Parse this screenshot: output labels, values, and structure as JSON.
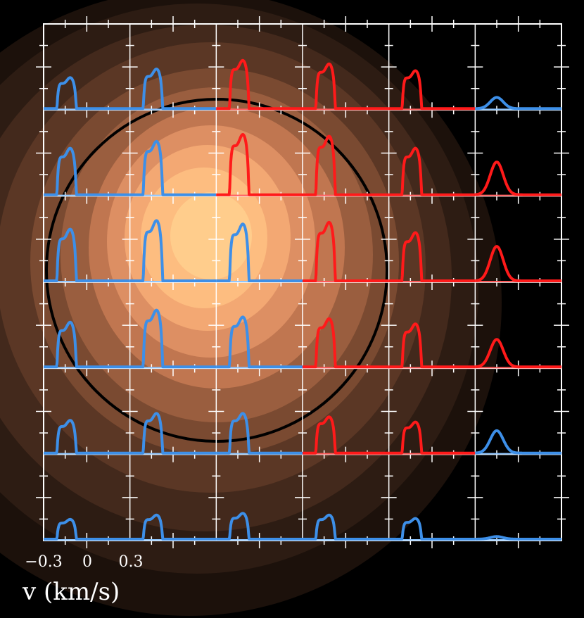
{
  "colors": {
    "background": "#000000",
    "grid": "#ffffff",
    "blue_spectrum": "#3d8fe8",
    "red_spectrum": "#ff1a1a",
    "blue_baseline": "#8ec6ff",
    "red_baseline": "#ff5a5a",
    "ring": "#000000",
    "contour_levels": [
      "#1c110b",
      "#2d1c13",
      "#43291c",
      "#5b3725",
      "#7a4a31",
      "#9a5e3f",
      "#c07650",
      "#dd8f63",
      "#f3a873",
      "#fdbd80",
      "#ffcd8c"
    ]
  },
  "chart_data": {
    "type": "line",
    "title": "",
    "xlabel": "v (km/s)",
    "ylabel": "",
    "x_ticks": [
      "−0.3",
      "0",
      "0.3"
    ],
    "x_tick_values": [
      -0.3,
      0,
      0.3
    ],
    "grid": true,
    "panel_grid": {
      "columns": 6,
      "rows": 6
    },
    "panel_velocity_range": [
      -0.3,
      0.9
    ],
    "panels": [
      {
        "row": 0,
        "col": 0,
        "color": "blue",
        "peak": 0.36,
        "shape": "double"
      },
      {
        "row": 0,
        "col": 1,
        "color": "blue",
        "peak": 0.46,
        "shape": "double"
      },
      {
        "row": 0,
        "col": 2,
        "color": "red",
        "peak": 0.56,
        "shape": "double"
      },
      {
        "row": 0,
        "col": 3,
        "color": "red",
        "peak": 0.52,
        "shape": "double"
      },
      {
        "row": 0,
        "col": 4,
        "color": "red",
        "peak": 0.44,
        "shape": "double"
      },
      {
        "row": 0,
        "col": 5,
        "color": "blue",
        "peak": 0.13,
        "shape": "single"
      },
      {
        "row": 1,
        "col": 0,
        "color": "blue",
        "peak": 0.54,
        "shape": "double"
      },
      {
        "row": 1,
        "col": 1,
        "color": "blue",
        "peak": 0.62,
        "shape": "double"
      },
      {
        "row": 1,
        "col": 2,
        "color": "red",
        "peak": 0.7,
        "shape": "double"
      },
      {
        "row": 1,
        "col": 3,
        "color": "red",
        "peak": 0.68,
        "shape": "double"
      },
      {
        "row": 1,
        "col": 4,
        "color": "red",
        "peak": 0.54,
        "shape": "double"
      },
      {
        "row": 1,
        "col": 5,
        "color": "red",
        "peak": 0.38,
        "shape": "single"
      },
      {
        "row": 2,
        "col": 0,
        "color": "blue",
        "peak": 0.6,
        "shape": "double"
      },
      {
        "row": 2,
        "col": 1,
        "color": "blue",
        "peak": 0.7,
        "shape": "double"
      },
      {
        "row": 2,
        "col": 2,
        "color": "blue",
        "peak": 0.66,
        "shape": "double"
      },
      {
        "row": 2,
        "col": 3,
        "color": "red",
        "peak": 0.68,
        "shape": "double"
      },
      {
        "row": 2,
        "col": 4,
        "color": "red",
        "peak": 0.56,
        "shape": "double"
      },
      {
        "row": 2,
        "col": 5,
        "color": "red",
        "peak": 0.4,
        "shape": "single"
      },
      {
        "row": 3,
        "col": 0,
        "color": "blue",
        "peak": 0.52,
        "shape": "double"
      },
      {
        "row": 3,
        "col": 1,
        "color": "blue",
        "peak": 0.66,
        "shape": "double"
      },
      {
        "row": 3,
        "col": 2,
        "color": "blue",
        "peak": 0.58,
        "shape": "double"
      },
      {
        "row": 3,
        "col": 3,
        "color": "red",
        "peak": 0.56,
        "shape": "double"
      },
      {
        "row": 3,
        "col": 4,
        "color": "red",
        "peak": 0.5,
        "shape": "double"
      },
      {
        "row": 3,
        "col": 5,
        "color": "red",
        "peak": 0.32,
        "shape": "single"
      },
      {
        "row": 4,
        "col": 0,
        "color": "blue",
        "peak": 0.38,
        "shape": "double"
      },
      {
        "row": 4,
        "col": 1,
        "color": "blue",
        "peak": 0.46,
        "shape": "double"
      },
      {
        "row": 4,
        "col": 2,
        "color": "blue",
        "peak": 0.46,
        "shape": "double"
      },
      {
        "row": 4,
        "col": 3,
        "color": "red",
        "peak": 0.42,
        "shape": "double"
      },
      {
        "row": 4,
        "col": 4,
        "color": "red",
        "peak": 0.36,
        "shape": "double"
      },
      {
        "row": 4,
        "col": 5,
        "color": "blue",
        "peak": 0.26,
        "shape": "single"
      },
      {
        "row": 5,
        "col": 0,
        "color": "blue",
        "peak": 0.23,
        "shape": "double"
      },
      {
        "row": 5,
        "col": 1,
        "color": "blue",
        "peak": 0.28,
        "shape": "double"
      },
      {
        "row": 5,
        "col": 2,
        "color": "blue",
        "peak": 0.3,
        "shape": "double"
      },
      {
        "row": 5,
        "col": 3,
        "color": "blue",
        "peak": 0.28,
        "shape": "double"
      },
      {
        "row": 5,
        "col": 4,
        "color": "blue",
        "peak": 0.24,
        "shape": "double"
      },
      {
        "row": 5,
        "col": 5,
        "color": "blue",
        "peak": 0.03,
        "shape": "single"
      }
    ]
  }
}
